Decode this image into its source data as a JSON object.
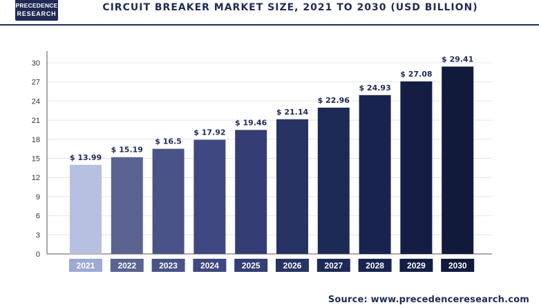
{
  "header": {
    "logo_line1": "PRECEDENCE",
    "logo_line2": "RESEARCH",
    "title": "CIRCUIT BREAKER MARKET SIZE, 2021 TO 2030 (USD BILLION)"
  },
  "chart_data": {
    "type": "bar",
    "title": "CIRCUIT BREAKER MARKET SIZE, 2021 TO 2030 (USD BILLION)",
    "categories": [
      "2021",
      "2022",
      "2023",
      "2024",
      "2025",
      "2026",
      "2027",
      "2028",
      "2029",
      "2030"
    ],
    "values": [
      13.99,
      15.19,
      16.5,
      17.92,
      19.46,
      21.14,
      22.96,
      24.93,
      27.08,
      29.41
    ],
    "value_labels": [
      "$ 13.99",
      "$ 15.19",
      "$ 16.5",
      "$ 17.92",
      "$ 19.46",
      "$ 21.14",
      "$ 22.96",
      "$ 24.93",
      "$ 27.08",
      "$ 29.41"
    ],
    "yticks": [
      0,
      3,
      6,
      9,
      12,
      15,
      18,
      21,
      24,
      27,
      30
    ],
    "ylim": [
      0,
      30
    ],
    "grid": true,
    "bar_colors": [
      "#b7c0e0",
      "#5b6490",
      "#4a5388",
      "#3f4880",
      "#343d74",
      "#273463",
      "#1d2a58",
      "#18244f",
      "#141e45",
      "#121a3c"
    ],
    "label_bg_colors": [
      "#9ea9d4",
      "#5b6490",
      "#4a5388",
      "#3f4880",
      "#343d74",
      "#273463",
      "#1d2a58",
      "#18244f",
      "#141e45",
      "#121a3c"
    ]
  },
  "footer": {
    "source": "Source: www.precedenceresearch.com"
  },
  "colors": {
    "brand": "#1f2a56",
    "grid": "#e4e4e4",
    "axis": "#555555"
  }
}
